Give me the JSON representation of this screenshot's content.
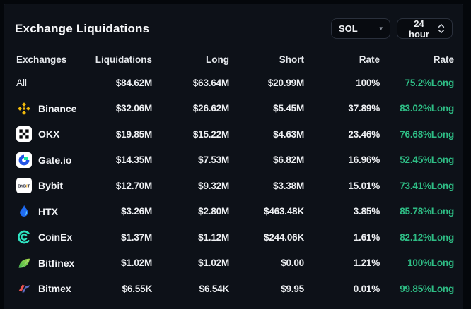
{
  "header": {
    "title": "Exchange Liquidations",
    "coin_select": {
      "value": "SOL",
      "caret_glyph": "▾",
      "icon": "chevron-down-icon"
    },
    "time_select": {
      "value": "24 hour",
      "icon": "up-down-chevrons-icon"
    }
  },
  "table": {
    "columns": [
      "Exchanges",
      "Liquidations",
      "Long",
      "Short",
      "Rate",
      "Rate"
    ],
    "rows": [
      {
        "exchange": "All",
        "logo": null,
        "liquidations": "$84.62M",
        "long": "$63.64M",
        "short": "$20.99M",
        "rate": "100%",
        "long_rate": "75.2%Long"
      },
      {
        "exchange": "Binance",
        "logo": "binance",
        "liquidations": "$32.06M",
        "long": "$26.62M",
        "short": "$5.45M",
        "rate": "37.89%",
        "long_rate": "83.02%Long"
      },
      {
        "exchange": "OKX",
        "logo": "okx",
        "liquidations": "$19.85M",
        "long": "$15.22M",
        "short": "$4.63M",
        "rate": "23.46%",
        "long_rate": "76.68%Long"
      },
      {
        "exchange": "Gate.io",
        "logo": "gateio",
        "liquidations": "$14.35M",
        "long": "$7.53M",
        "short": "$6.82M",
        "rate": "16.96%",
        "long_rate": "52.45%Long"
      },
      {
        "exchange": "Bybit",
        "logo": "bybit",
        "liquidations": "$12.70M",
        "long": "$9.32M",
        "short": "$3.38M",
        "rate": "15.01%",
        "long_rate": "73.41%Long"
      },
      {
        "exchange": "HTX",
        "logo": "htx",
        "liquidations": "$3.26M",
        "long": "$2.80M",
        "short": "$463.48K",
        "rate": "3.85%",
        "long_rate": "85.78%Long"
      },
      {
        "exchange": "CoinEx",
        "logo": "coinex",
        "liquidations": "$1.37M",
        "long": "$1.12M",
        "short": "$244.06K",
        "rate": "1.61%",
        "long_rate": "82.12%Long"
      },
      {
        "exchange": "Bitfinex",
        "logo": "bitfinex",
        "liquidations": "$1.02M",
        "long": "$1.02M",
        "short": "$0.00",
        "rate": "1.21%",
        "long_rate": "100%Long"
      },
      {
        "exchange": "Bitmex",
        "logo": "bitmex",
        "liquidations": "$6.55K",
        "long": "$6.54K",
        "short": "$9.95",
        "rate": "0.01%",
        "long_rate": "99.85%Long"
      }
    ]
  },
  "colors": {
    "green": "#2ebd85",
    "panel_bg": "#0d1118",
    "outer_bg": "#04070b",
    "binance_yellow": "#f0b90b"
  }
}
